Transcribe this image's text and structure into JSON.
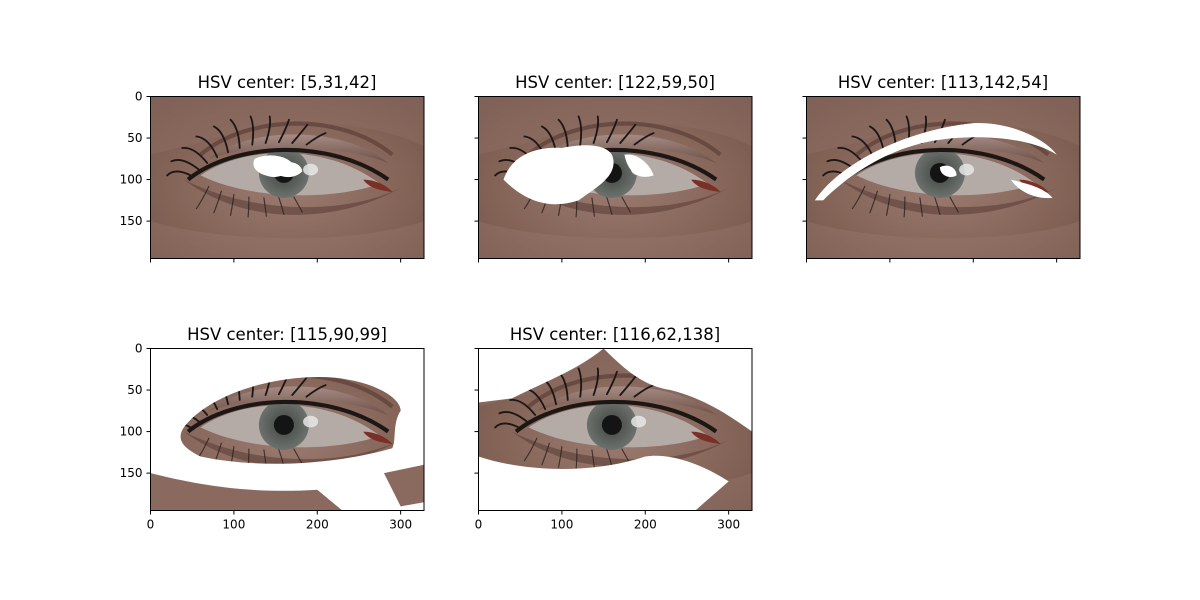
{
  "figure": {
    "background": "#ffffff"
  },
  "chart_data": [
    {
      "type": "image",
      "title": "HSV center: [5,31,42]",
      "xlim": [
        0,
        328
      ],
      "ylim": [
        195,
        0
      ],
      "xticks": [
        0,
        100,
        200,
        300
      ],
      "yticks": [
        0,
        50,
        100,
        150
      ],
      "show_xticklabels": false,
      "show_yticklabels": true,
      "masked_color": "#ffffff",
      "masked_region": "small patches inside the iris and highlight"
    },
    {
      "type": "image",
      "title": "HSV center: [122,59,50]",
      "xlim": [
        0,
        328
      ],
      "ylim": [
        195,
        0
      ],
      "xticks": [
        0,
        100,
        200,
        300
      ],
      "yticks": [
        0,
        50,
        100,
        150
      ],
      "show_xticklabels": false,
      "show_yticklabels": false,
      "masked_color": "#ffffff",
      "masked_region": "inner eye corner, lashes and iris area"
    },
    {
      "type": "image",
      "title": "HSV center: [113,142,54]",
      "xlim": [
        0,
        328
      ],
      "ylim": [
        195,
        0
      ],
      "xticks": [
        0,
        100,
        200,
        300
      ],
      "yticks": [
        0,
        50,
        100,
        150
      ],
      "show_xticklabels": false,
      "show_yticklabels": false,
      "masked_color": "#ffffff",
      "masked_region": "upper lid crease band and outer corner"
    },
    {
      "type": "image",
      "title": "HSV center: [115,90,99]",
      "xlim": [
        0,
        328
      ],
      "ylim": [
        195,
        0
      ],
      "xticks": [
        0,
        100,
        200,
        300
      ],
      "yticks": [
        0,
        50,
        100,
        150
      ],
      "show_xticklabels": true,
      "show_yticklabels": true,
      "masked_color": "#ffffff",
      "masked_region": "most of the skin; eye and lashes remain"
    },
    {
      "type": "image",
      "title": "HSV center: [116,62,138]",
      "xlim": [
        0,
        328
      ],
      "ylim": [
        195,
        0
      ],
      "xticks": [
        0,
        100,
        200,
        300
      ],
      "yticks": [
        0,
        50,
        100,
        150
      ],
      "show_xticklabels": true,
      "show_yticklabels": false,
      "masked_color": "#ffffff",
      "masked_region": "large skin areas above the lid and below the eye"
    }
  ],
  "colors": {
    "skin": "#8a6a5f",
    "skin_light": "#a98a7f",
    "skin_dark": "#6b4a41",
    "lid_shadow": "#5a3a33",
    "eye_white": "#b9b1ad",
    "iris": "#5f6460",
    "pupil": "#151515",
    "lash": "#1c1715",
    "mask": "#ffffff",
    "axis": "#000000"
  }
}
